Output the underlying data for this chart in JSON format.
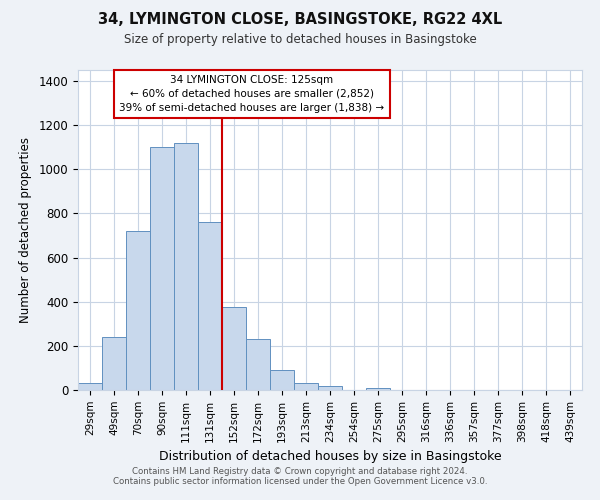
{
  "title": "34, LYMINGTON CLOSE, BASINGSTOKE, RG22 4XL",
  "subtitle": "Size of property relative to detached houses in Basingstoke",
  "xlabel": "Distribution of detached houses by size in Basingstoke",
  "ylabel": "Number of detached properties",
  "bar_labels": [
    "29sqm",
    "49sqm",
    "70sqm",
    "90sqm",
    "111sqm",
    "131sqm",
    "152sqm",
    "172sqm",
    "193sqm",
    "213sqm",
    "234sqm",
    "254sqm",
    "275sqm",
    "295sqm",
    "316sqm",
    "336sqm",
    "357sqm",
    "377sqm",
    "398sqm",
    "418sqm",
    "439sqm"
  ],
  "bar_heights": [
    30,
    240,
    720,
    1100,
    1120,
    760,
    375,
    230,
    90,
    30,
    20,
    0,
    10,
    0,
    0,
    0,
    0,
    0,
    0,
    0,
    0
  ],
  "bar_color": "#c8d8ec",
  "bar_edge_color": "#6090c0",
  "vline_x": 5.5,
  "vline_color": "#cc0000",
  "ylim": [
    0,
    1450
  ],
  "yticks": [
    0,
    200,
    400,
    600,
    800,
    1000,
    1200,
    1400
  ],
  "annotation_box_text": "34 LYMINGTON CLOSE: 125sqm\n← 60% of detached houses are smaller (2,852)\n39% of semi-detached houses are larger (1,838) →",
  "footnote1": "Contains HM Land Registry data © Crown copyright and database right 2024.",
  "footnote2": "Contains public sector information licensed under the Open Government Licence v3.0.",
  "bg_color": "#eef2f7",
  "plot_bg_color": "#ffffff",
  "grid_color": "#c8d4e4"
}
